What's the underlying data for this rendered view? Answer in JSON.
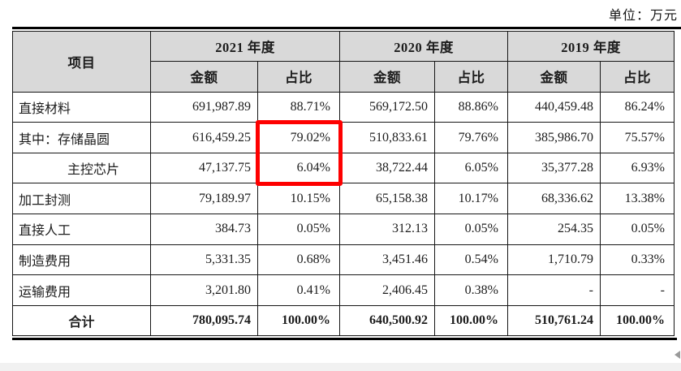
{
  "page": {
    "unit_label": "单位：万元",
    "colors": {
      "header_bg": "#d9d9d9",
      "highlight_red": "#fe0000",
      "border": "#161616"
    }
  },
  "table": {
    "item_header": "项目",
    "year_groups": [
      {
        "year_label": "2021 年度",
        "amount_header": "金额",
        "ratio_header": "占比"
      },
      {
        "year_label": "2020 年度",
        "amount_header": "金额",
        "ratio_header": "占比"
      },
      {
        "year_label": "2019 年度",
        "amount_header": "金额",
        "ratio_header": "占比"
      }
    ],
    "rows": [
      {
        "label": "直接材料",
        "indent": false,
        "total": false,
        "values": [
          "691,987.89",
          "88.71%",
          "569,172.50",
          "88.86%",
          "440,459.48",
          "86.24%"
        ]
      },
      {
        "label": "其中：存储晶圆",
        "indent": false,
        "total": false,
        "values": [
          "616,459.25",
          "79.02%",
          "510,833.61",
          "79.76%",
          "385,986.70",
          "75.57%"
        ]
      },
      {
        "label": "主控芯片",
        "indent": true,
        "total": false,
        "values": [
          "47,137.75",
          "6.04%",
          "38,722.44",
          "6.05%",
          "35,377.28",
          "6.93%"
        ]
      },
      {
        "label": "加工封测",
        "indent": false,
        "total": false,
        "values": [
          "79,189.97",
          "10.15%",
          "65,158.38",
          "10.17%",
          "68,336.62",
          "13.38%"
        ]
      },
      {
        "label": "直接人工",
        "indent": false,
        "total": false,
        "values": [
          "384.73",
          "0.05%",
          "312.13",
          "0.05%",
          "254.35",
          "0.05%"
        ]
      },
      {
        "label": "制造费用",
        "indent": false,
        "total": false,
        "values": [
          "5,331.35",
          "0.68%",
          "3,451.46",
          "0.54%",
          "1,710.79",
          "0.33%"
        ]
      },
      {
        "label": "运输费用",
        "indent": false,
        "total": false,
        "values": [
          "3,201.80",
          "0.41%",
          "2,406.45",
          "0.38%",
          "-",
          "-"
        ]
      },
      {
        "label": "合计",
        "indent": false,
        "total": true,
        "values": [
          "780,095.74",
          "100.00%",
          "640,500.92",
          "100.00%",
          "510,761.24",
          "100.00%"
        ]
      }
    ],
    "highlight": {
      "color": "#fe0000",
      "row_indices": [
        1,
        2
      ],
      "value_index": 1,
      "boxed_values": [
        "79.02%",
        "6.04%"
      ]
    }
  }
}
